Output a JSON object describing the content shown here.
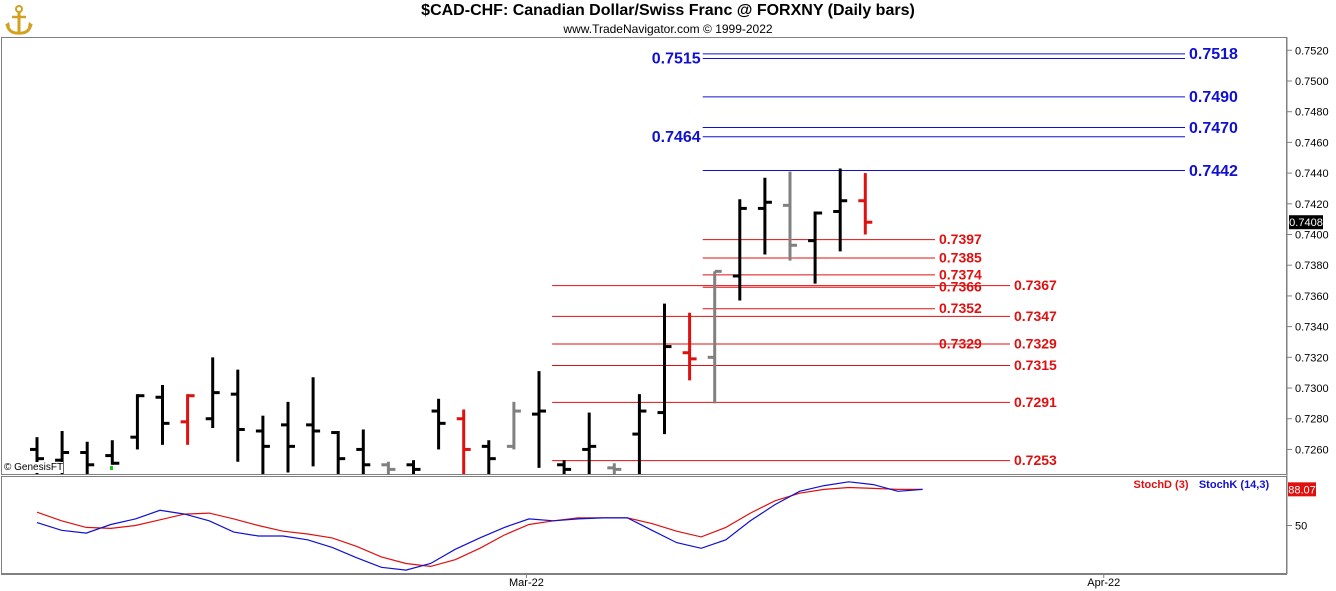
{
  "header": {
    "title": "$CAD-CHF:  Canadian Dollar/Swiss Franc @ FORXNY  (Daily bars)",
    "copyright": "www.TradeNavigator.com © 1999-2022"
  },
  "watermark": {
    "text": "© GenesisFT",
    "logo_icon": "anchor-logo-icon"
  },
  "chart_data": [
    {
      "type": "ohlc",
      "ylim": [
        0.7244,
        0.7528
      ],
      "y_ticks": [
        "0.7260",
        "0.7280",
        "0.7300",
        "0.7320",
        "0.7340",
        "0.7360",
        "0.7380",
        "0.7400",
        "0.7420",
        "0.7440",
        "0.7460",
        "0.7480",
        "0.7500",
        "0.7520"
      ],
      "last_price": "0.7408",
      "x_labels": [
        {
          "label": "Mar-22",
          "index": 19.5
        },
        {
          "label": "Apr-22",
          "index": 42.5
        }
      ],
      "colors": {
        "up": "#000000",
        "down": "#e01010",
        "neutral": "#808080"
      },
      "bars": [
        {
          "i": 0,
          "o": 0.726,
          "h": 0.7268,
          "l": 0.7244,
          "c": 0.7254,
          "color": "black"
        },
        {
          "i": 1,
          "o": 0.7253,
          "h": 0.7272,
          "l": 0.7244,
          "c": 0.7258,
          "color": "black"
        },
        {
          "i": 2,
          "o": 0.7258,
          "h": 0.7265,
          "l": 0.7244,
          "c": 0.725,
          "color": "black"
        },
        {
          "i": 3,
          "o": 0.7256,
          "h": 0.7266,
          "l": 0.725,
          "c": 0.7251,
          "color": "black"
        },
        {
          "i": 4,
          "o": 0.7268,
          "h": 0.7296,
          "l": 0.726,
          "c": 0.7295,
          "color": "black"
        },
        {
          "i": 5,
          "o": 0.7294,
          "h": 0.7302,
          "l": 0.7263,
          "c": 0.7277,
          "color": "black"
        },
        {
          "i": 6,
          "o": 0.7278,
          "h": 0.7296,
          "l": 0.7263,
          "c": 0.7295,
          "color": "red"
        },
        {
          "i": 7,
          "o": 0.728,
          "h": 0.732,
          "l": 0.7274,
          "c": 0.7297,
          "color": "black"
        },
        {
          "i": 8,
          "o": 0.7296,
          "h": 0.7312,
          "l": 0.7252,
          "c": 0.7273,
          "color": "black"
        },
        {
          "i": 9,
          "o": 0.7272,
          "h": 0.7282,
          "l": 0.7244,
          "c": 0.7262,
          "color": "black"
        },
        {
          "i": 10,
          "o": 0.7276,
          "h": 0.7291,
          "l": 0.7245,
          "c": 0.7262,
          "color": "black"
        },
        {
          "i": 11,
          "o": 0.7276,
          "h": 0.7307,
          "l": 0.7249,
          "c": 0.7272,
          "color": "black"
        },
        {
          "i": 12,
          "o": 0.7271,
          "h": 0.7272,
          "l": 0.7244,
          "c": 0.7254,
          "color": "black"
        },
        {
          "i": 13,
          "o": 0.726,
          "h": 0.7273,
          "l": 0.7244,
          "c": 0.725,
          "color": "black"
        },
        {
          "i": 14,
          "o": 0.725,
          "h": 0.7252,
          "l": 0.7244,
          "c": 0.7247,
          "color": "gray"
        },
        {
          "i": 15,
          "o": 0.725,
          "h": 0.7253,
          "l": 0.7244,
          "c": 0.7247,
          "color": "black"
        },
        {
          "i": 16,
          "o": 0.7285,
          "h": 0.7293,
          "l": 0.726,
          "c": 0.7277,
          "color": "black"
        },
        {
          "i": 17,
          "o": 0.728,
          "h": 0.7286,
          "l": 0.7244,
          "c": 0.726,
          "color": "red"
        },
        {
          "i": 18,
          "o": 0.7262,
          "h": 0.7266,
          "l": 0.7244,
          "c": 0.7254,
          "color": "black"
        },
        {
          "i": 19,
          "o": 0.7262,
          "h": 0.7291,
          "l": 0.726,
          "c": 0.7285,
          "color": "gray"
        },
        {
          "i": 20,
          "o": 0.7283,
          "h": 0.7311,
          "l": 0.7248,
          "c": 0.7285,
          "color": "black"
        },
        {
          "i": 21,
          "o": 0.725,
          "h": 0.7253,
          "l": 0.7244,
          "c": 0.7247,
          "color": "black"
        },
        {
          "i": 22,
          "o": 0.726,
          "h": 0.7284,
          "l": 0.7244,
          "c": 0.7262,
          "color": "black"
        },
        {
          "i": 23,
          "o": 0.7248,
          "h": 0.7251,
          "l": 0.7244,
          "c": 0.7247,
          "color": "gray"
        },
        {
          "i": 24,
          "o": 0.727,
          "h": 0.7296,
          "l": 0.7244,
          "c": 0.7285,
          "color": "black"
        },
        {
          "i": 25,
          "o": 0.7284,
          "h": 0.7355,
          "l": 0.727,
          "c": 0.7327,
          "color": "black"
        },
        {
          "i": 26,
          "o": 0.7323,
          "h": 0.7349,
          "l": 0.7305,
          "c": 0.7319,
          "color": "red"
        },
        {
          "i": 27,
          "o": 0.732,
          "h": 0.7376,
          "l": 0.729,
          "c": 0.7376,
          "color": "gray"
        },
        {
          "i": 28,
          "o": 0.7373,
          "h": 0.7423,
          "l": 0.7357,
          "c": 0.7417,
          "color": "black"
        },
        {
          "i": 29,
          "o": 0.7417,
          "h": 0.7437,
          "l": 0.7387,
          "c": 0.7421,
          "color": "black"
        },
        {
          "i": 30,
          "o": 0.7419,
          "h": 0.7441,
          "l": 0.7383,
          "c": 0.7393,
          "color": "gray"
        },
        {
          "i": 31,
          "o": 0.7396,
          "h": 0.7415,
          "l": 0.7368,
          "c": 0.7414,
          "color": "black"
        },
        {
          "i": 32,
          "o": 0.7415,
          "h": 0.7443,
          "l": 0.7389,
          "c": 0.7422,
          "color": "black"
        },
        {
          "i": 33,
          "o": 0.7422,
          "h": 0.744,
          "l": 0.74,
          "c": 0.7408,
          "color": "red"
        }
      ],
      "levels": [
        {
          "value": 0.7518,
          "label": "0.7518",
          "color": "blue",
          "from_index": 27,
          "side": "right"
        },
        {
          "value": 0.7515,
          "label": "0.7515",
          "color": "blue",
          "from_index": 27,
          "side": "left"
        },
        {
          "value": 0.749,
          "label": "0.7490",
          "color": "blue",
          "from_index": 27,
          "side": "right"
        },
        {
          "value": 0.747,
          "label": "0.7470",
          "color": "blue",
          "from_index": 27,
          "side": "right"
        },
        {
          "value": 0.7464,
          "label": "0.7464",
          "color": "blue",
          "from_index": 27,
          "side": "left"
        },
        {
          "value": 0.7442,
          "label": "0.7442",
          "color": "blue",
          "from_index": 27,
          "side": "right"
        },
        {
          "value": 0.7397,
          "label": "0.7397",
          "color": "red",
          "from_index": 27,
          "side": "mid"
        },
        {
          "value": 0.7385,
          "label": "0.7385",
          "color": "red",
          "from_index": 27,
          "side": "mid"
        },
        {
          "value": 0.7374,
          "label": "0.7374",
          "color": "red",
          "from_index": 27,
          "side": "mid"
        },
        {
          "value": 0.7367,
          "label": "0.7367",
          "color": "red",
          "from_index": 21,
          "side": "right"
        },
        {
          "value": 0.7366,
          "label": "0.7366",
          "color": "red",
          "from_index": 27,
          "side": "mid"
        },
        {
          "value": 0.7352,
          "label": "0.7352",
          "color": "red",
          "from_index": 27,
          "side": "mid"
        },
        {
          "value": 0.7347,
          "label": "0.7347",
          "color": "red",
          "from_index": 21,
          "side": "right"
        },
        {
          "value": 0.7329,
          "label": "0.7329",
          "color": "red",
          "from_index": 27,
          "side": "mid"
        },
        {
          "value": 0.7329,
          "label": "0.7329",
          "color": "red",
          "from_index": 21,
          "side": "right"
        },
        {
          "value": 0.7315,
          "label": "0.7315",
          "color": "red",
          "from_index": 21,
          "side": "right"
        },
        {
          "value": 0.7291,
          "label": "0.7291",
          "color": "red",
          "from_index": 21,
          "side": "right"
        },
        {
          "value": 0.7253,
          "label": "0.7253",
          "color": "red",
          "from_index": 21,
          "side": "right"
        }
      ]
    },
    {
      "type": "line",
      "ylim": [
        0,
        100
      ],
      "y_ticks": [
        "50"
      ],
      "last_value": "88.07",
      "series": [
        {
          "name": "StochD (3)",
          "color": "#e01010",
          "values": [
            64,
            55,
            48,
            47,
            50,
            56,
            62,
            63,
            57,
            50,
            44,
            41,
            37,
            28,
            17,
            10,
            7,
            14,
            26,
            40,
            51,
            55,
            58,
            58,
            58,
            52,
            44,
            38,
            48,
            63,
            76,
            84,
            88,
            90,
            89,
            88,
            88
          ]
        },
        {
          "name": "StochK (14,3)",
          "color": "#1010d0",
          "values": [
            53,
            45,
            42,
            51,
            57,
            66,
            62,
            55,
            43,
            39,
            39,
            35,
            27,
            16,
            6,
            3,
            10,
            25,
            37,
            48,
            57,
            55,
            57,
            58,
            58,
            45,
            32,
            26,
            35,
            55,
            72,
            86,
            92,
            96,
            93,
            86,
            88
          ]
        }
      ]
    }
  ]
}
